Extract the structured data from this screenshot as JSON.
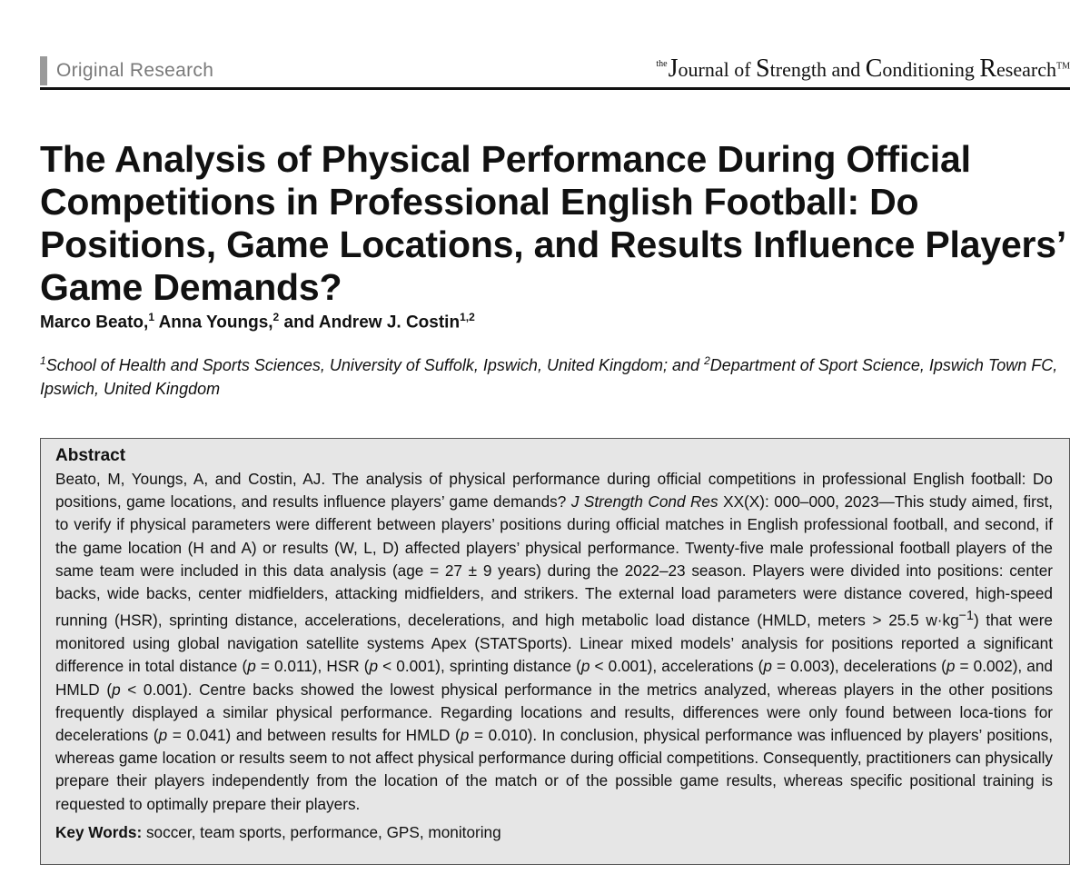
{
  "header": {
    "section": "Original Research",
    "journal": {
      "the": "the",
      "j": "J",
      "ournal": "ournal of ",
      "s": "S",
      "trength": "trength and ",
      "c": "C",
      "onditioning": "onditioning ",
      "r": "R",
      "esearch": "esearch",
      "tm": "TM"
    }
  },
  "article": {
    "title": "The Analysis of Physical Performance During Official Competitions in Professional English Football: Do Positions, Game Locations, and Results Influence Players’ Game Demands?",
    "authors": [
      {
        "name": "Marco Beato,",
        "sup": "1"
      },
      {
        "name": "Anna Youngs,",
        "sup": "2"
      },
      {
        "name": "and Andrew J. Costin",
        "sup": "1,2"
      }
    ],
    "affiliation": {
      "sup1": "1",
      "part1": "School of Health and Sports Sciences, University of Suffolk, Ipswich, United Kingdom; and ",
      "sup2": "2",
      "part2": "Department of Sport Science, Ipswich Town FC, Ipswich, United Kingdom"
    }
  },
  "abstract": {
    "heading": "Abstract",
    "s01": "Beato, M, Youngs, A, and Costin, AJ. The analysis of physical performance during official competitions in professional English football: Do positions, game locations, and results influence players’ game demands? ",
    "journal_ref": "J Strength Cond Res",
    "s02": " XX(X): 000–000, 2023—This study aimed, first, to verify if physical parameters were different between players’ positions during official matches in English professional football, and second, if the game location (H and A) or results (W, L, D) affected players’ physical performance. Twenty-five male professional football players of the same team were included in this data analysis (age = 27 ± 9 years) during the 2022–23 season. Players were divided into positions: center backs, wide backs, center midfielders, attacking midfielders, and strikers. The external load parameters were distance covered, high-speed running (HSR), sprinting distance, accelerations, decelerations, and high metabolic load distance (HMLD, meters > 25.5 w·kg",
    "sup_exp": "−1",
    "s03": ") that were monitored using global navigation satellite systems Apex (STATSports). Linear mixed models’ analysis for positions reported a significant difference in total distance (",
    "p": "p",
    "s04": " = 0.011), HSR (",
    "s05": " < 0.001), sprinting distance (",
    "s06": " < 0.001), accelerations (",
    "s07": " = 0.003), decelerations (",
    "s08": " = 0.002), and HMLD (",
    "s09": " < 0.001). Centre backs showed the lowest physical performance in the metrics analyzed, whereas players in the other positions frequently displayed a similar physical performance. Regarding locations and results, differences were only found between loca-tions for decelerations (",
    "s10": " = 0.041) and between results for HMLD (",
    "s11": " = 0.010). In conclusion, physical performance was influenced by players’ positions, whereas game location or results seem to not affect physical performance during official competitions. Consequently, practitioners can physically prepare their players independently from the location of the match or of the possible game results, whereas specific positional training is requested to optimally prepare their players.",
    "keywords_label": "Key Words:",
    "keywords": " soccer, team sports, performance, GPS, monitoring"
  }
}
